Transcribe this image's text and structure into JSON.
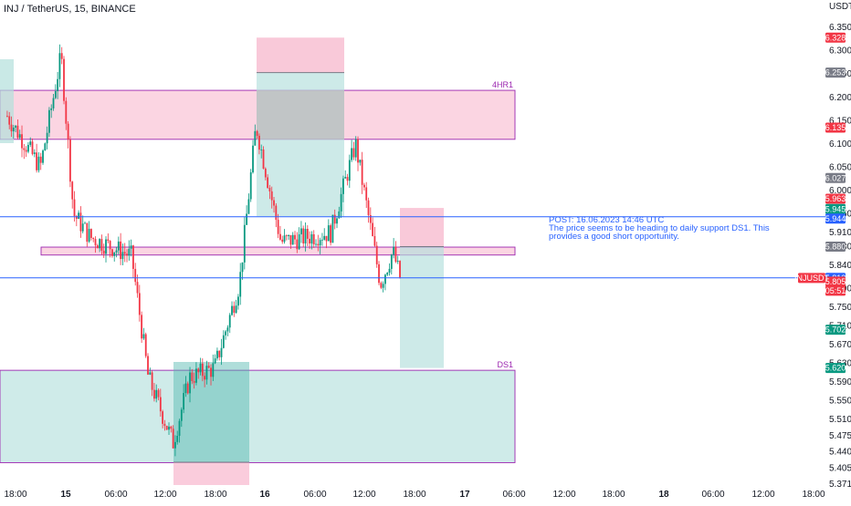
{
  "header": {
    "symbol_title": "INJ / TetherUS, 15, BINANCE"
  },
  "price_axis": {
    "currency": "USDT",
    "ticks": [
      "6.350",
      "6.300",
      "6.250",
      "6.200",
      "6.150",
      "6.100",
      "6.050",
      "6.000",
      "5.950",
      "5.910",
      "5.880",
      "5.840",
      "5.790",
      "5.750",
      "5.710",
      "5.670",
      "5.630",
      "5.590",
      "5.550",
      "5.510",
      "5.475",
      "5.440",
      "5.405",
      "5.371"
    ]
  },
  "time_axis": {
    "ticks": [
      "18:00",
      "15",
      "06:00",
      "12:00",
      "18:00",
      "16",
      "06:00",
      "12:00",
      "18:00",
      "17",
      "06:00",
      "12:00",
      "18:00",
      "18",
      "06:00",
      "12:00",
      "18:00"
    ]
  },
  "price_badges": [
    {
      "label": "6.328",
      "color": "#f23645"
    },
    {
      "label": "6.253",
      "color": "#787b86"
    },
    {
      "label": "6.135",
      "color": "#f23645"
    },
    {
      "label": "6.027",
      "color": "#787b86"
    },
    {
      "label": "5.963",
      "color": "#f23645"
    },
    {
      "label": "5.945",
      "color": "#089981"
    },
    {
      "label": "5.944",
      "color": "#2962ff"
    },
    {
      "label": "5.880",
      "color": "#787b86"
    },
    {
      "label": "5.813",
      "color": "#2962ff"
    },
    {
      "label": "5.805",
      "color": "#f23645"
    },
    {
      "label": "05:51",
      "color": "#f23645"
    },
    {
      "label": "5.702",
      "color": "#089981"
    },
    {
      "label": "5.620",
      "color": "#089981"
    }
  ],
  "symbol_badge": {
    "label": "INJUSDT",
    "color": "#f23645"
  },
  "zones": [
    {
      "label": "4HR1",
      "top": 6.215,
      "bottom": 6.11,
      "color": "#f8bbd0"
    },
    {
      "label": "",
      "top": 5.879,
      "bottom": 5.862,
      "color": "#f8bbd0"
    },
    {
      "label": "DS1",
      "top": 5.615,
      "bottom": 5.417,
      "color": "#b2dfdb"
    }
  ],
  "annotation": {
    "line1": "POST: 16.06.2023 14:46 UTC",
    "line2": "The price seems to be heading to daily support DS1. This",
    "line3": "provides a good short opportunity."
  },
  "horizontal_lines": [
    {
      "price": 5.944,
      "color": "#2962ff"
    },
    {
      "price": 5.813,
      "color": "#2962ff"
    }
  ],
  "colors": {
    "up": "#089981",
    "down": "#f23645",
    "zone_border": "#9c27b0",
    "line": "#2962ff"
  },
  "chart_data": {
    "type": "candlestick",
    "symbol": "INJ / TetherUS",
    "interval": "15",
    "exchange": "BINANCE",
    "y_axis_label": "USDT",
    "ylim": [
      5.371,
      6.375
    ],
    "last_price": 5.805,
    "countdown": "05:51",
    "approx_path": [
      {
        "time": "14 Jun 17:00",
        "price": 6.16
      },
      {
        "time": "14 Jun 21:00",
        "price": 6.05
      },
      {
        "time": "14 Jun 23:30",
        "price": 6.29
      },
      {
        "time": "15 Jun 01:00",
        "price": 5.95
      },
      {
        "time": "15 Jun 03:00",
        "price": 5.9
      },
      {
        "time": "15 Jun 08:00",
        "price": 5.86
      },
      {
        "time": "15 Jun 10:00",
        "price": 5.6
      },
      {
        "time": "15 Jun 13:00",
        "price": 5.46
      },
      {
        "time": "15 Jun 15:00",
        "price": 5.6
      },
      {
        "time": "15 Jun 18:00",
        "price": 5.62
      },
      {
        "time": "15 Jun 21:00",
        "price": 5.8
      },
      {
        "time": "15 Jun 23:00",
        "price": 6.14
      },
      {
        "time": "16 Jun 02:00",
        "price": 5.89
      },
      {
        "time": "16 Jun 08:00",
        "price": 5.91
      },
      {
        "time": "16 Jun 11:00",
        "price": 6.1
      },
      {
        "time": "16 Jun 14:00",
        "price": 5.8
      },
      {
        "time": "16 Jun 15:30",
        "price": 5.87
      },
      {
        "time": "16 Jun 16:30",
        "price": 5.805
      }
    ],
    "positions": [
      {
        "type": "long",
        "profit_zone_top": 6.25,
        "entry": 5.42,
        "stop_zone_bottom": 5.381
      },
      {
        "type": "short",
        "stop_zone_top": 6.328,
        "entry": 6.253,
        "target": 5.945
      },
      {
        "type": "short",
        "stop_zone_top": 5.963,
        "entry": 5.88,
        "target": 5.62
      }
    ]
  }
}
